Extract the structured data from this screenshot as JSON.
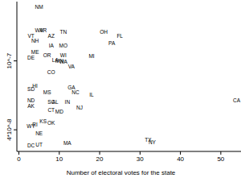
{
  "chart_data": {
    "type": "scatter",
    "x_label": "Number of electoral votes for the state",
    "point_labels": [
      "NM",
      "WV",
      "AR",
      "AZ",
      "TN",
      "VT",
      "NH",
      "IA",
      "MO",
      "OH",
      "FL",
      "PA",
      "ME",
      "OR",
      "WI",
      "DE",
      "MI",
      "LA",
      "MN",
      "WA",
      "VA",
      "CO",
      "HI",
      "SD",
      "MS",
      "GA",
      "NC",
      "IL",
      "ND",
      "SC",
      "AL",
      "IN",
      "NJ",
      "AK",
      "CT",
      "MD",
      "KS",
      "OK",
      "RI",
      "WY",
      "NE",
      "DC",
      "UT",
      "MA",
      "TX",
      "NY",
      "CA"
    ],
    "x": [
      5,
      5,
      6,
      8,
      11,
      3,
      4,
      8,
      11,
      21,
      25,
      23,
      4,
      7,
      11,
      3,
      18,
      9,
      10,
      11,
      13,
      8,
      4,
      3,
      7,
      13,
      14,
      18,
      3,
      8,
      9,
      12,
      15,
      3,
      8,
      10,
      6,
      8,
      4,
      3,
      5,
      3,
      5,
      12,
      32,
      33,
      55
    ],
    "values": [
      2.06e-07,
      1.5e-07,
      1.5e-07,
      1.39e-07,
      1.47e-07,
      1.4e-07,
      1.31e-07,
      1.23e-07,
      1.23e-07,
      1.47e-07,
      1.39e-07,
      1.27e-07,
      1.13e-07,
      1.08e-07,
      1.08e-07,
      1.04e-07,
      1.07e-07,
      1.01e-07,
      1e-07,
      9.9e-08,
      9.3e-08,
      8.6e-08,
      7.2e-08,
      6.9e-08,
      6.6e-08,
      7e-08,
      6.6e-08,
      6.4e-08,
      5.9e-08,
      5.8e-08,
      5.8e-08,
      5.8e-08,
      5.4e-08,
      5.5e-08,
      5.2e-08,
      5.1e-08,
      4.5e-08,
      4.4e-08,
      4.3e-08,
      4.2e-08,
      3.8e-08,
      3.24e-08,
      3.3e-08,
      3.35e-08,
      3.5e-08,
      3.4e-08,
      5.9e-08
    ],
    "color": "#000000",
    "marker": "text",
    "log": "y",
    "xlim": [
      -0.5,
      55
    ],
    "xticks": [
      0,
      10,
      20,
      30,
      40,
      50
    ],
    "ylim": [
      3e-08,
      2.2e-07
    ],
    "yticks": [
      {
        "value": 4e-08,
        "label": "4*10^-8"
      },
      {
        "value": 1e-07,
        "label": "10^-7"
      }
    ]
  }
}
